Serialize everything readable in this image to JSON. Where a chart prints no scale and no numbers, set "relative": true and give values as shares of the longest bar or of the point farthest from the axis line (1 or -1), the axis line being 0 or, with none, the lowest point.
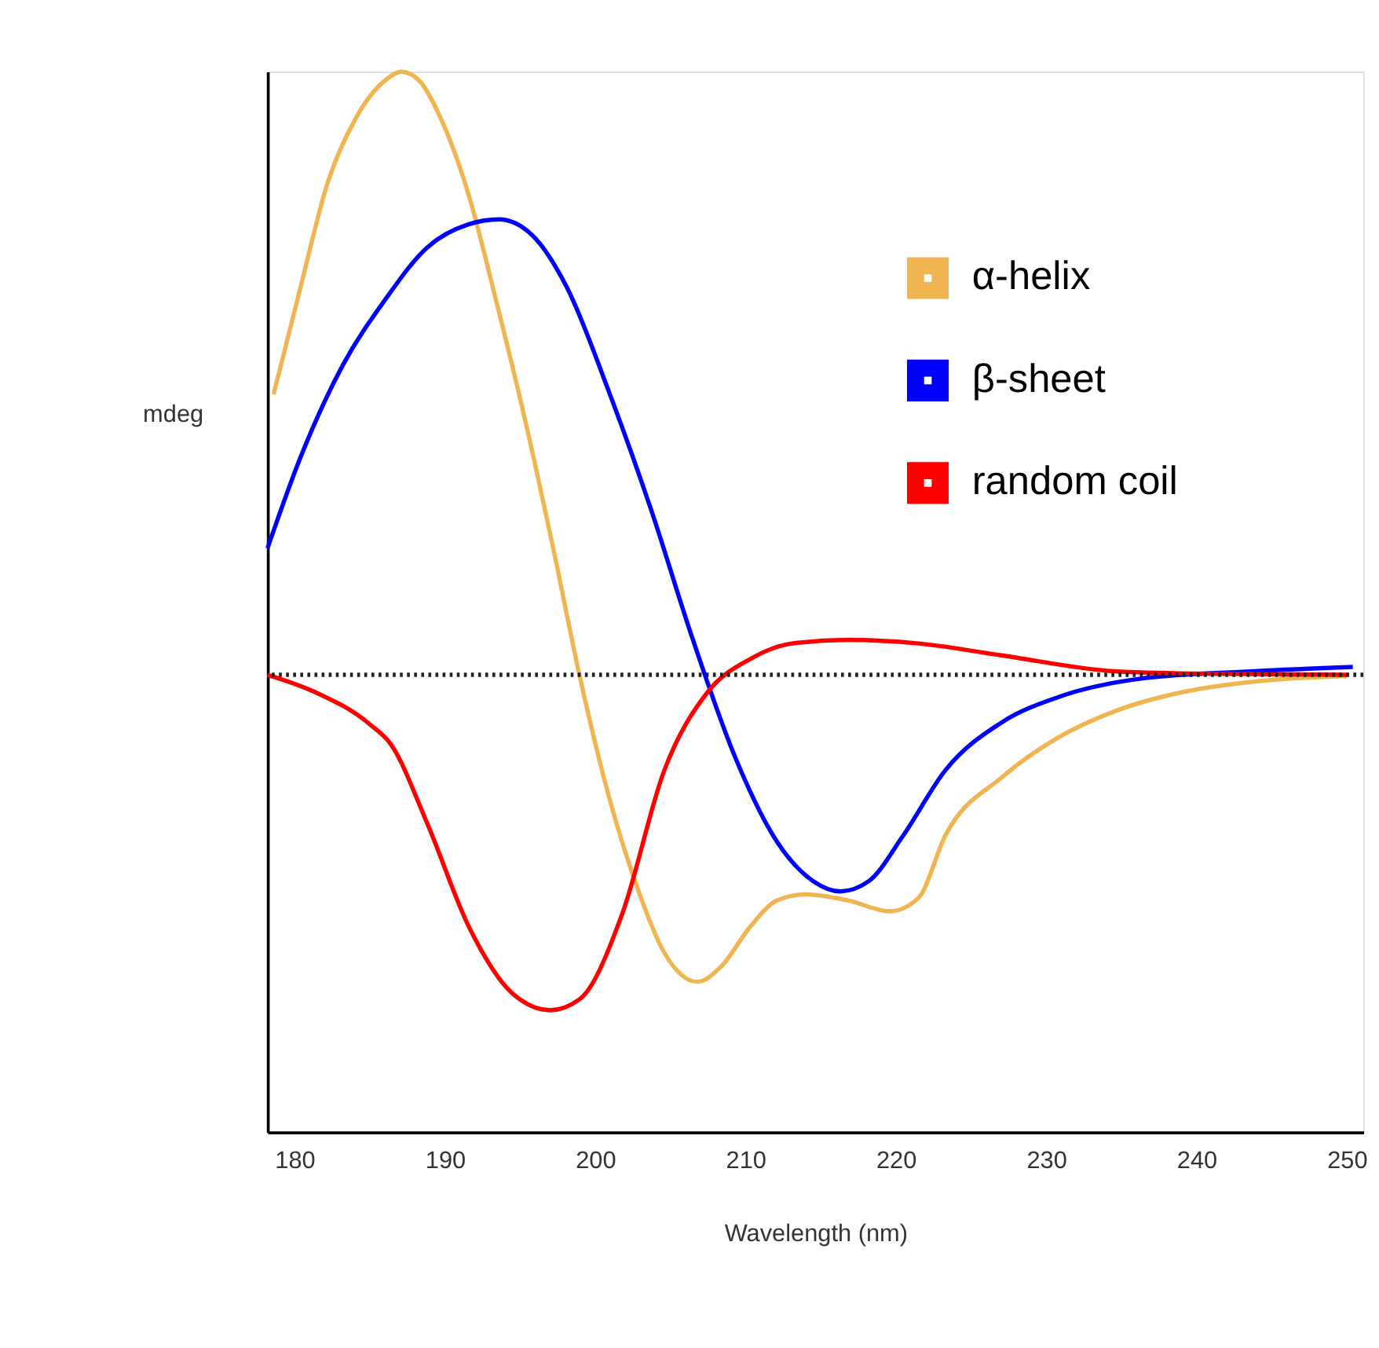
{
  "chart_data": {
    "type": "line",
    "xlabel": "Wavelength (nm)",
    "ylabel": "mdeg",
    "relative": true,
    "xlim": [
      178.2,
      251.1
    ],
    "xticks": [
      180,
      190,
      200,
      210,
      220,
      230,
      240,
      250
    ],
    "grid": false,
    "legend": "top right",
    "marker": "none",
    "line_style": "solid",
    "ref_lines": [
      {
        "axis": "y",
        "value": 0,
        "color": "#222222",
        "line_style": "dotted"
      }
    ],
    "series": [
      {
        "name": "α-helix",
        "color": "#f0b450",
        "x": [
          178.6,
          180.4,
          182.2,
          184.1,
          186.0,
          187.1,
          188.3,
          189.7,
          191.6,
          193.4,
          195.3,
          197.2,
          199.0,
          200.9,
          202.8,
          204.6,
          206.8,
          208.4,
          210.3,
          212.1,
          214.0,
          216.8,
          219.6,
          221.5,
          223.3,
          227.1,
          230.8,
          234.5,
          239.2,
          243.9,
          250.0
        ],
        "values": [
          0.465,
          0.643,
          0.816,
          0.924,
          0.985,
          1.0,
          0.985,
          0.924,
          0.794,
          0.621,
          0.426,
          0.21,
          -0.006,
          -0.201,
          -0.353,
          -0.461,
          -0.509,
          -0.483,
          -0.418,
          -0.374,
          -0.364,
          -0.374,
          -0.392,
          -0.37,
          -0.266,
          -0.169,
          -0.104,
          -0.061,
          -0.028,
          -0.011,
          -0.002
        ]
      },
      {
        "name": "β-sheet",
        "color": "#0000ff",
        "x": [
          178.2,
          180.4,
          183.2,
          186.0,
          188.8,
          191.6,
          193.6,
          195.8,
          198.1,
          200.9,
          203.7,
          206.5,
          209.3,
          212.1,
          214.5,
          216.3,
          218.2,
          220.5,
          223.3,
          227.1,
          230.8,
          236.4,
          243.9,
          250.4
        ],
        "values": [
          0.21,
          0.361,
          0.513,
          0.621,
          0.708,
          0.747,
          0.755,
          0.729,
          0.643,
          0.47,
          0.275,
          0.058,
          -0.136,
          -0.277,
          -0.342,
          -0.359,
          -0.342,
          -0.266,
          -0.158,
          -0.078,
          -0.037,
          -0.006,
          0.006,
          0.013
        ]
      },
      {
        "name": "random coil",
        "color": "#ff0000",
        "x": [
          178.2,
          181.3,
          185.0,
          186.4,
          188.8,
          191.6,
          194.4,
          197.0,
          199.0,
          201.8,
          204.6,
          207.5,
          210.3,
          213.1,
          216.8,
          221.5,
          227.1,
          234.5,
          240.1,
          250.0
        ],
        "values": [
          0.0,
          -0.028,
          -0.082,
          -0.115,
          -0.245,
          -0.418,
          -0.526,
          -0.556,
          -0.537,
          -0.396,
          -0.158,
          -0.028,
          0.026,
          0.052,
          0.058,
          0.052,
          0.032,
          0.006,
          0.002,
          0.0
        ]
      }
    ]
  }
}
